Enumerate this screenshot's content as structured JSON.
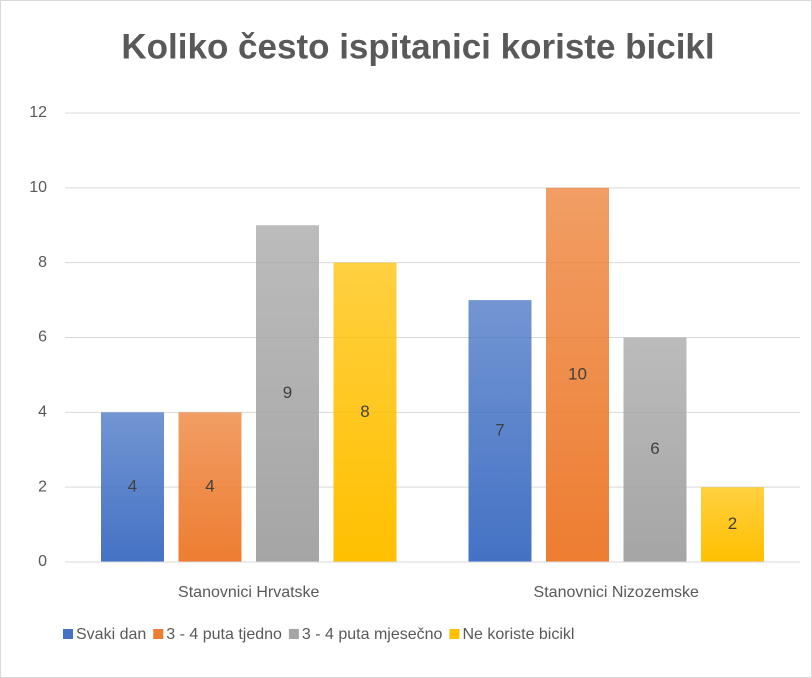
{
  "chart_data": {
    "type": "bar",
    "title": "Koliko često ispitanici koriste bicikl",
    "categories": [
      "Stanovnici Hrvatske",
      "Stanovnici Nizozemske"
    ],
    "series": [
      {
        "name": "Svaki dan",
        "color": "#4472c4",
        "values": [
          4,
          7
        ]
      },
      {
        "name": "3 - 4 puta tjedno",
        "color": "#ed7d31",
        "values": [
          4,
          10
        ]
      },
      {
        "name": "3 - 4 puta mjesečno",
        "color": "#a5a5a5",
        "values": [
          9,
          6
        ]
      },
      {
        "name": "Ne koriste bicikl",
        "color": "#ffc000",
        "values": [
          8,
          2
        ]
      }
    ],
    "ylim": [
      0,
      12
    ],
    "yticks": [
      0,
      2,
      4,
      6,
      8,
      10,
      12
    ],
    "grid": true,
    "legend": "bottom"
  }
}
